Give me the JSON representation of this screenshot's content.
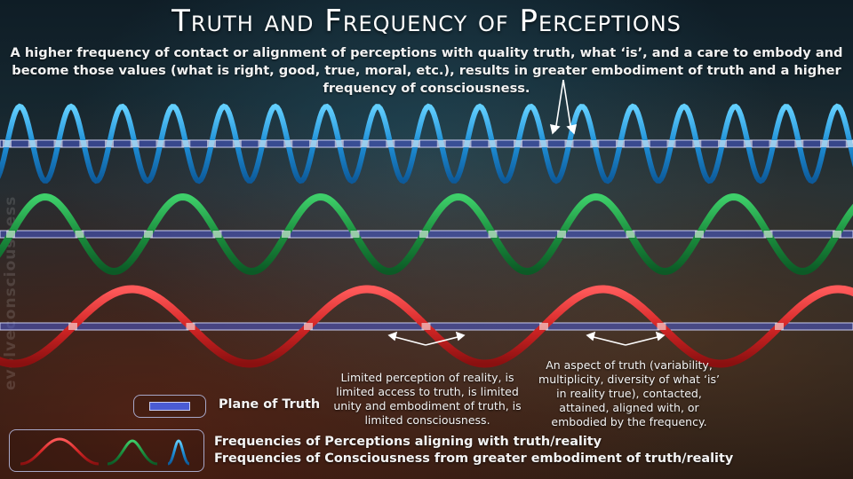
{
  "title": "Truth and Frequency of Perceptions",
  "subtitle": "A higher frequency of contact or alignment of perceptions with quality truth, what ‘is’, and a care to embody and become those values (what is right, good, true, moral, etc.), results in greater embodiment of truth and a higher frequency of consciousness.",
  "watermark": "evolveconsciousness.org",
  "notes": {
    "limited": "Limited perception of reality, is limited access to truth, is limited unity and embodiment of truth, is limited consciousness.",
    "aspect": "An aspect of truth (variability, multiplicity, diversity of what ‘is’ in reality true), contacted, attained, aligned with, or embodied by the frequency."
  },
  "legend": {
    "plane": "Plane of Truth",
    "frequencies_perception": "Frequencies of Perceptions aligning with truth/reality",
    "frequencies_consciousness": "Frequencies of Consciousness from greater embodiment of truth/reality"
  },
  "colors": {
    "high_frequency": "#2aa8e6",
    "medium_frequency": "#1f9a46",
    "low_frequency": "#d82c2c",
    "plane": "#4a5bd4"
  },
  "icons": [
    "arrow-icon",
    "plane-of-truth-swatch",
    "red-wave-icon",
    "green-wave-icon",
    "blue-wave-icon"
  ]
}
